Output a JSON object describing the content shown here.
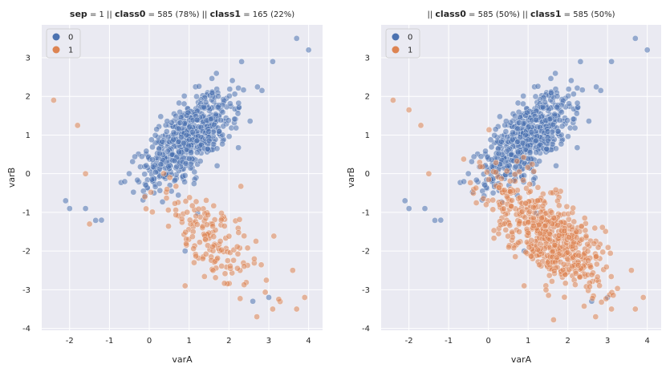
{
  "colors": {
    "class0": "#4c72b0",
    "class1": "#dd8452",
    "plot_bg": "#eaeaf2",
    "grid": "#ffffff"
  },
  "chart_data": [
    {
      "type": "scatter",
      "title_parts": [
        {
          "text": "sep",
          "bold": true
        },
        {
          "text": " = 1 || ",
          "bold": false
        },
        {
          "text": "class0",
          "bold": true
        },
        {
          "text": " = 585 (78%)  || ",
          "bold": false
        },
        {
          "text": "class1",
          "bold": true
        },
        {
          "text": " = 165 (22%)",
          "bold": false
        }
      ],
      "xlabel": "varA",
      "ylabel": "varB",
      "xlim": [
        -2.7,
        4.35
      ],
      "ylim": [
        -4.05,
        3.85
      ],
      "xticks": [
        -2,
        -1,
        0,
        1,
        2,
        3,
        4
      ],
      "yticks": [
        -4,
        -3,
        -2,
        -1,
        0,
        1,
        2,
        3
      ],
      "legend": {
        "position": "top-left",
        "entries": [
          "0",
          "1"
        ]
      },
      "series": [
        {
          "name": "0",
          "count": 585,
          "pattern": "elongated cloud centered near (1.0, 0.9) along slope ~1",
          "outliers": [
            [
              3.7,
              3.5
            ],
            [
              4.0,
              3.2
            ],
            [
              3.1,
              2.9
            ],
            [
              -2.1,
              -0.7
            ],
            [
              -2.0,
              -0.9
            ],
            [
              -1.6,
              -0.9
            ],
            [
              -1.2,
              -1.2
            ],
            [
              2.6,
              -3.3
            ],
            [
              3.0,
              -3.2
            ],
            [
              0.9,
              -2.0
            ]
          ]
        },
        {
          "name": "1",
          "count": 165,
          "pattern": "cluster centered near (1.5, -1.6) along slope ~-1",
          "outliers": [
            [
              -2.4,
              1.9
            ],
            [
              -1.8,
              1.25
            ],
            [
              -1.6,
              0.0
            ],
            [
              -1.5,
              -1.3
            ],
            [
              3.6,
              -2.5
            ],
            [
              3.9,
              -3.2
            ],
            [
              3.7,
              -3.5
            ],
            [
              3.1,
              -3.5
            ],
            [
              2.7,
              -3.7
            ],
            [
              0.9,
              -2.9
            ]
          ]
        }
      ]
    },
    {
      "type": "scatter",
      "title_parts": [
        {
          "text": "|| ",
          "bold": false
        },
        {
          "text": "class0",
          "bold": true
        },
        {
          "text": " = 585 (50%)  || ",
          "bold": false
        },
        {
          "text": "class1",
          "bold": true
        },
        {
          "text": " = 585 (50%)",
          "bold": false
        }
      ],
      "xlabel": "varA",
      "ylabel": "varB",
      "xlim": [
        -2.7,
        4.35
      ],
      "ylim": [
        -4.05,
        3.85
      ],
      "xticks": [
        -2,
        -1,
        0,
        1,
        2,
        3,
        4
      ],
      "yticks": [
        -4,
        -3,
        -2,
        -1,
        0,
        1,
        2,
        3
      ],
      "legend": {
        "position": "top-left",
        "entries": [
          "0",
          "1"
        ]
      },
      "series": [
        {
          "name": "0",
          "count": 585,
          "pattern": "elongated cloud centered near (1.0, 0.9) along slope ~1",
          "outliers": [
            [
              3.7,
              3.5
            ],
            [
              4.0,
              3.2
            ],
            [
              3.1,
              2.9
            ],
            [
              -2.1,
              -0.7
            ],
            [
              -2.0,
              -0.9
            ],
            [
              -1.6,
              -0.9
            ],
            [
              -1.2,
              -1.2
            ],
            [
              2.6,
              -3.3
            ],
            [
              3.0,
              -3.2
            ],
            [
              0.9,
              -2.0
            ]
          ]
        },
        {
          "name": "1",
          "count": 585,
          "pattern": "oversampled cluster centered near (1.5, -1.6) along slope ~-1",
          "outliers": [
            [
              -2.4,
              1.9
            ],
            [
              -2.0,
              1.65
            ],
            [
              -1.7,
              1.25
            ],
            [
              -1.5,
              0.0
            ],
            [
              3.6,
              -2.5
            ],
            [
              3.9,
              -3.2
            ],
            [
              3.7,
              -3.5
            ],
            [
              3.1,
              -3.5
            ],
            [
              2.7,
              -3.7
            ],
            [
              0.9,
              -2.9
            ]
          ]
        }
      ]
    }
  ]
}
